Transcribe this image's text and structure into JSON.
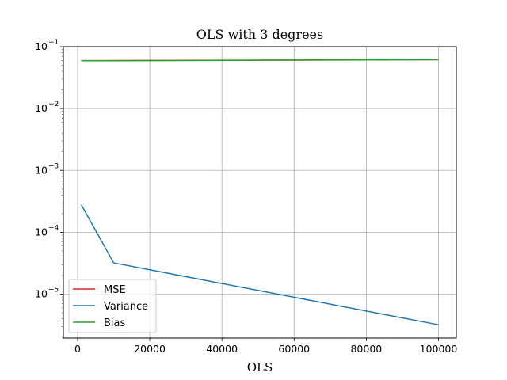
{
  "chart_data": {
    "type": "line",
    "title": "OLS with 3 degrees",
    "xlabel": "OLS",
    "ylabel": "",
    "yscale": "log",
    "xlim": [
      -3950,
      104950
    ],
    "ylim": [
      1.95e-06,
      0.1
    ],
    "grid": true,
    "legend_position": "lower-left",
    "x_ticks": [
      0,
      20000,
      40000,
      60000,
      80000,
      100000
    ],
    "x_tick_labels": [
      "0",
      "20000",
      "40000",
      "60000",
      "80000",
      "100000"
    ],
    "y_ticks": [
      1e-05,
      0.0001,
      0.001,
      0.01,
      0.1
    ],
    "y_tick_labels": [
      {
        "base": "10",
        "exp": "−5"
      },
      {
        "base": "10",
        "exp": "−4"
      },
      {
        "base": "10",
        "exp": "−3"
      },
      {
        "base": "10",
        "exp": "−2"
      },
      {
        "base": "10",
        "exp": "−1"
      }
    ],
    "x": [
      1000,
      10000,
      100000
    ],
    "series": [
      {
        "name": "MSE",
        "color": "#d62728",
        "values": [
          0.0595,
          0.0596,
          0.0618
        ]
      },
      {
        "name": "Variance",
        "color": "#1f77b4",
        "values": [
          0.00028,
          3.2e-05,
          3.2e-06
        ]
      },
      {
        "name": "Bias",
        "color": "#2ca02c",
        "values": [
          0.0592,
          0.0593,
          0.0615
        ]
      }
    ]
  }
}
